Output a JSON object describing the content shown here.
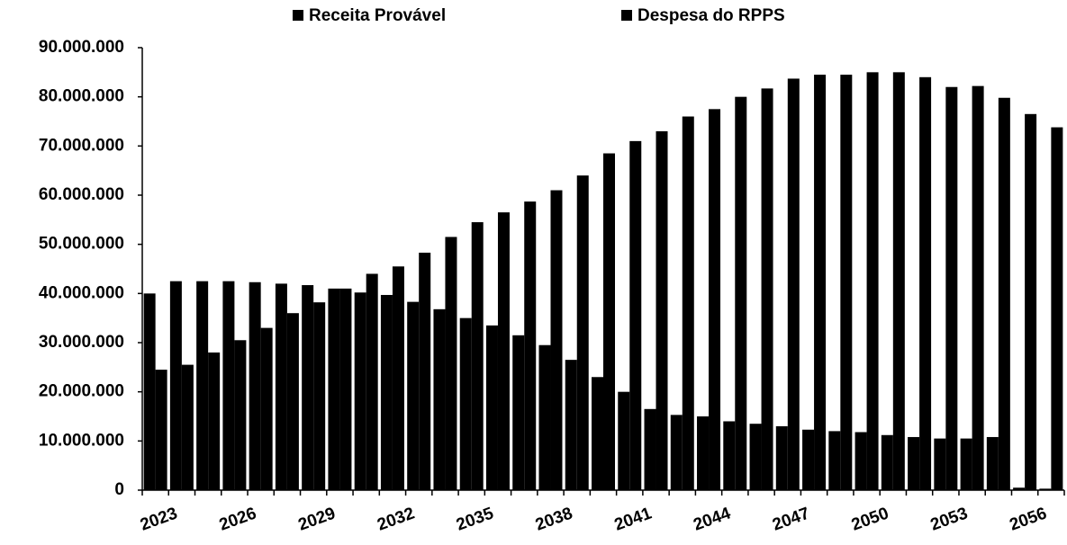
{
  "chart_data": {
    "type": "bar",
    "categories": [
      "2023",
      null,
      null,
      "2026",
      null,
      null,
      "2029",
      null,
      null,
      "2032",
      null,
      null,
      "2035",
      null,
      null,
      "2038",
      null,
      null,
      "2041",
      null,
      null,
      "2044",
      null,
      null,
      "2047",
      null,
      null,
      "2050",
      null,
      null,
      "2053",
      null,
      null,
      "2056",
      null
    ],
    "series": [
      {
        "name": "Receita Provável",
        "color": "#000000",
        "values": [
          40000000,
          42500000,
          42500000,
          42500000,
          42300000,
          42000000,
          41700000,
          41000000,
          40200000,
          39700000,
          38300000,
          36800000,
          35000000,
          33500000,
          31500000,
          29500000,
          26500000,
          23000000,
          20000000,
          16500000,
          15300000,
          15000000,
          14000000,
          13500000,
          13000000,
          12300000,
          12000000,
          11800000,
          11200000,
          10800000,
          10500000,
          10500000,
          10800000,
          500000,
          300000
        ]
      },
      {
        "name": "Despesa do RPPS",
        "color": "#000000",
        "values": [
          24500000,
          25500000,
          28000000,
          30500000,
          33000000,
          36000000,
          38200000,
          41000000,
          44000000,
          45500000,
          48300000,
          51500000,
          54500000,
          56500000,
          58700000,
          61000000,
          64000000,
          68500000,
          71000000,
          73000000,
          76000000,
          77500000,
          80000000,
          81700000,
          83700000,
          84500000,
          84500000,
          85000000,
          85000000,
          84000000,
          82000000,
          82200000,
          79800000,
          76500000,
          73800000
        ]
      }
    ],
    "ylim": [
      0,
      90000000
    ],
    "yticks": [
      0,
      {
        "value": 10000000,
        "label": "10.000.000"
      },
      {
        "value": 20000000,
        "label": "20.000.000"
      },
      {
        "value": 30000000,
        "label": "30.000.000"
      },
      {
        "value": 40000000,
        "label": "40.000.000"
      },
      {
        "value": 50000000,
        "label": "50.000.000"
      },
      {
        "value": 60000000,
        "label": "60.000.000"
      },
      {
        "value": 70000000,
        "label": "70.000.000"
      },
      {
        "value": 80000000,
        "label": "80.000.000"
      },
      {
        "value": 90000000,
        "label": "90.000.000"
      }
    ],
    "grid": false,
    "legend": "top"
  }
}
